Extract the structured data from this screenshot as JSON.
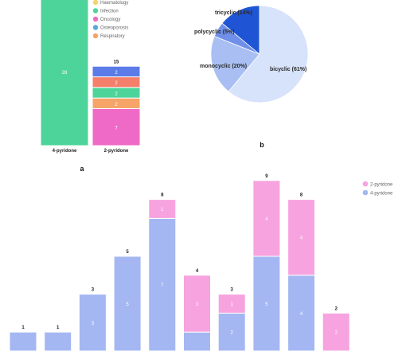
{
  "panels": {
    "a": "a",
    "b": "b"
  },
  "colors": {
    "haematology": "#f6d36d",
    "infection": "#4dd49a",
    "oncology": "#ef6ac6",
    "osteoporosis": "#5aa7dc",
    "respiratory": "#f6a468",
    "extra_blue": "#5b7be8",
    "extra_red": "#f47f6b",
    "pie_bicyclic": "#d7e2fb",
    "pie_monocyclic": "#a9bff3",
    "pie_polycyclic": "#6f8fe8",
    "pie_tricyclic": "#1f55d4",
    "stack_2pyridone": "#f7a3df",
    "stack_4pyridone": "#a4b7f2"
  },
  "chart_data": [
    {
      "type": "bar",
      "stacked": true,
      "panel": "a",
      "categories": [
        "4-pyridone",
        "2-pyridone"
      ],
      "totals_labels": [
        "",
        "15"
      ],
      "legend": {
        "placement": "top-right",
        "entries": [
          "Haematology",
          "Infection",
          "Oncology",
          "Osteoporosis",
          "Respiratory"
        ]
      },
      "segments": [
        {
          "category": "4-pyridone",
          "series": "Infection",
          "value": 28,
          "label": "28",
          "color_key": "infection"
        },
        {
          "category": "2-pyridone",
          "series": "Oncology",
          "value": 7,
          "label": "7",
          "color_key": "oncology"
        },
        {
          "category": "2-pyridone",
          "series": "Respiratory",
          "value": 2,
          "label": "2",
          "color_key": "respiratory"
        },
        {
          "category": "2-pyridone",
          "series": "Infection",
          "value": 2,
          "label": "2",
          "color_key": "infection"
        },
        {
          "category": "2-pyridone",
          "series": "",
          "value": 2,
          "label": "2",
          "color_key": "extra_red"
        },
        {
          "category": "2-pyridone",
          "series": "",
          "value": 2,
          "label": "2",
          "color_key": "extra_blue"
        }
      ]
    },
    {
      "type": "pie",
      "panel": "b",
      "slices": [
        {
          "label": "bicyclic (61%)",
          "value": 61,
          "color_key": "pie_bicyclic"
        },
        {
          "label": "monocyclic (20%)",
          "value": 20,
          "color_key": "pie_monocyclic"
        },
        {
          "label": "polycyclic (5%)",
          "value": 5,
          "color_key": "pie_polycyclic"
        },
        {
          "label": "tricyclic (14%)",
          "value": 14,
          "color_key": "pie_tricyclic"
        }
      ]
    },
    {
      "type": "bar",
      "stacked": true,
      "legend": {
        "placement": "top-right",
        "entries": [
          "2-pyridone",
          "4-pyridone"
        ]
      },
      "series": [
        {
          "name": "4-pyridone",
          "color_key": "stack_4pyridone",
          "values": [
            1,
            1,
            3,
            5,
            7,
            1,
            2,
            5,
            4,
            0
          ]
        },
        {
          "name": "2-pyridone",
          "color_key": "stack_2pyridone",
          "values": [
            0,
            0,
            0,
            0,
            1,
            3,
            1,
            4,
            4,
            2
          ]
        }
      ],
      "segment_labels": {
        "4-pyridone": [
          "",
          "",
          "3",
          "5",
          "7",
          "",
          "2",
          "5",
          "4",
          ""
        ],
        "2-pyridone": [
          "",
          "",
          "",
          "",
          "1",
          "3",
          "1",
          "4",
          "4",
          "2"
        ]
      },
      "totals": [
        "1",
        "1",
        "3",
        "5",
        "8",
        "4",
        "3",
        "9",
        "8",
        "2"
      ],
      "ylim": [
        0,
        9.6
      ]
    }
  ]
}
